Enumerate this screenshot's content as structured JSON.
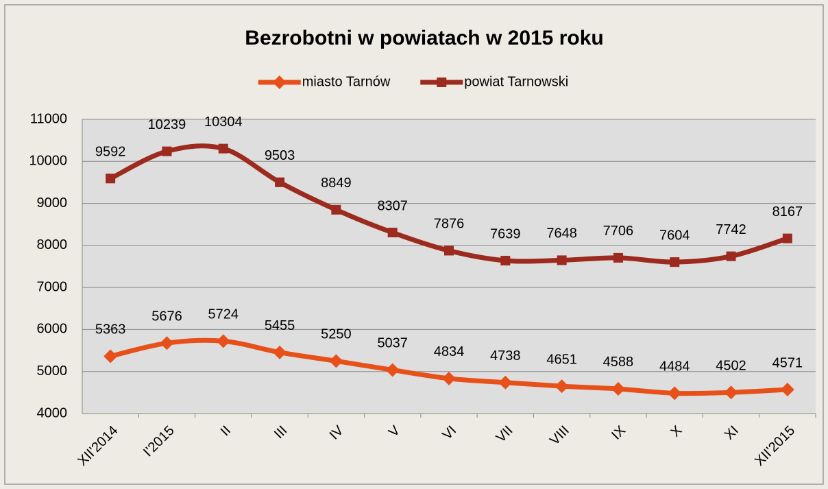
{
  "chart_data": {
    "type": "line",
    "title": "Bezrobotni w powiatach w 2015 roku",
    "categories": [
      "XII'2014",
      "I'2015",
      "II",
      "III",
      "IV",
      "V",
      "VI",
      "VII",
      "VIII",
      "IX",
      "X",
      "XI",
      "XII'2015"
    ],
    "series": [
      {
        "name": "miasto Tarnów",
        "color": "#e8501a",
        "marker": "diamond",
        "values": [
          5363,
          5676,
          5724,
          5455,
          5250,
          5037,
          4834,
          4738,
          4651,
          4588,
          4484,
          4502,
          4571
        ]
      },
      {
        "name": "powiat Tarnowski",
        "color": "#9c2a1e",
        "marker": "square",
        "values": [
          9592,
          10239,
          10304,
          9503,
          8849,
          8307,
          7876,
          7639,
          7648,
          7706,
          7604,
          7742,
          8167
        ]
      }
    ],
    "ylim": [
      4000,
      11000
    ],
    "yticks": [
      4000,
      5000,
      6000,
      7000,
      8000,
      9000,
      10000,
      11000
    ],
    "grid": true,
    "smooth": true,
    "legend": "top"
  }
}
